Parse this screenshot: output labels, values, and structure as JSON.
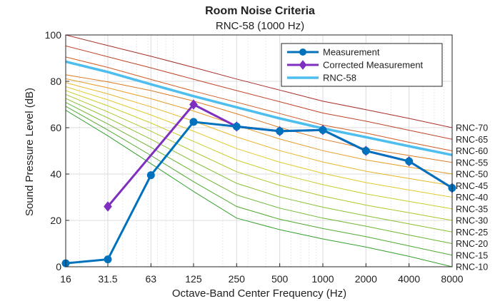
{
  "chart_data": {
    "type": "line",
    "title": "Room Noise Criteria",
    "subtitle": "RNC-58 (1000 Hz)",
    "xlabel": "Octave-Band Center Frequency (Hz)",
    "ylabel": "Sound Pressure Level (dB)",
    "x_scale": "log",
    "categories": [
      "16",
      "31.5",
      "63",
      "125",
      "250",
      "500",
      "1000",
      "2000",
      "4000",
      "8000"
    ],
    "x": [
      16,
      31.5,
      63,
      125,
      250,
      500,
      1000,
      2000,
      4000,
      8000
    ],
    "ylim": [
      0,
      100
    ],
    "yticks": [
      0,
      20,
      40,
      60,
      80,
      100
    ],
    "grid": true,
    "legend_position": "top-right",
    "series": [
      {
        "name": "Measurement",
        "color": "#0072BD",
        "marker": "circle",
        "values": [
          1.5,
          3.2,
          39.5,
          62.5,
          60.5,
          58.5,
          59,
          50,
          45.5,
          34
        ]
      },
      {
        "name": "Corrected Measurement",
        "color": "#7E2FBF",
        "marker": "diamond",
        "values": [
          null,
          26,
          null,
          70,
          60.5,
          58.5,
          59,
          50,
          45.5,
          34
        ]
      },
      {
        "name": "RNC-58",
        "color": "#4DBEEE",
        "marker": "none",
        "values": [
          88.5,
          84,
          78.7,
          73.6,
          68.8,
          64.0,
          59.7,
          55.9,
          52.0,
          48.2
        ]
      }
    ],
    "rnc_curves": [
      {
        "label": "RNC-10",
        "color": "#33A02C",
        "values": [
          67.5,
          56.5,
          44.5,
          32.5,
          21,
          16,
          12,
          8.5,
          4.5,
          0
        ]
      },
      {
        "label": "RNC-15",
        "color": "#4FAA2E",
        "values": [
          69.2,
          59,
          48,
          36.7,
          26,
          20.5,
          16.5,
          13,
          9,
          5
        ]
      },
      {
        "label": "RNC-20",
        "color": "#6CB530",
        "values": [
          70.9,
          61.6,
          51.5,
          41,
          31,
          25.3,
          21,
          17.5,
          13.7,
          10
        ]
      },
      {
        "label": "RNC-25",
        "color": "#8BBF30",
        "values": [
          72.6,
          64.2,
          55,
          45.4,
          36,
          30.1,
          25.7,
          22,
          18.5,
          15
        ]
      },
      {
        "label": "RNC-30",
        "color": "#AAC82F",
        "values": [
          74.3,
          66.8,
          58.5,
          49.7,
          41,
          35.1,
          30.5,
          26.6,
          23.3,
          20
        ]
      },
      {
        "label": "RNC-35",
        "color": "#C8CE2D",
        "values": [
          76,
          69.4,
          62,
          54.1,
          46,
          40.1,
          35.4,
          31.4,
          28.2,
          25
        ]
      },
      {
        "label": "RNC-40",
        "color": "#E0CB2A",
        "values": [
          77.7,
          72,
          65.5,
          58.5,
          51,
          45.1,
          40.3,
          36.3,
          33.1,
          30
        ]
      },
      {
        "label": "RNC-45",
        "color": "#E8B626",
        "values": [
          79.4,
          74.6,
          69,
          62.8,
          56,
          50.1,
          45.2,
          41.2,
          38.1,
          35
        ]
      },
      {
        "label": "RNC-50",
        "color": "#E79A24",
        "values": [
          81.1,
          77.2,
          72.5,
          67.2,
          61,
          55.1,
          50.1,
          46.1,
          43,
          40
        ]
      },
      {
        "label": "RNC-55",
        "color": "#DC7A24",
        "values": [
          82.8,
          79.8,
          76,
          71.5,
          66,
          60.1,
          55,
          51,
          48,
          45
        ]
      },
      {
        "label": "RNC-60",
        "color": "#CF5C26",
        "values": [
          90.5,
          86,
          80.8,
          75.8,
          71,
          66.1,
          61.1,
          57.7,
          53.7,
          50
        ]
      },
      {
        "label": "RNC-65",
        "color": "#BE4328",
        "values": [
          95.3,
          90.6,
          85.8,
          80.9,
          76,
          71.2,
          66.3,
          62.8,
          58.9,
          55
        ]
      },
      {
        "label": "RNC-70",
        "color": "#A82E2A",
        "values": [
          100,
          95.4,
          90.8,
          86,
          81,
          76.2,
          71.4,
          67.8,
          64,
          60
        ]
      }
    ]
  }
}
